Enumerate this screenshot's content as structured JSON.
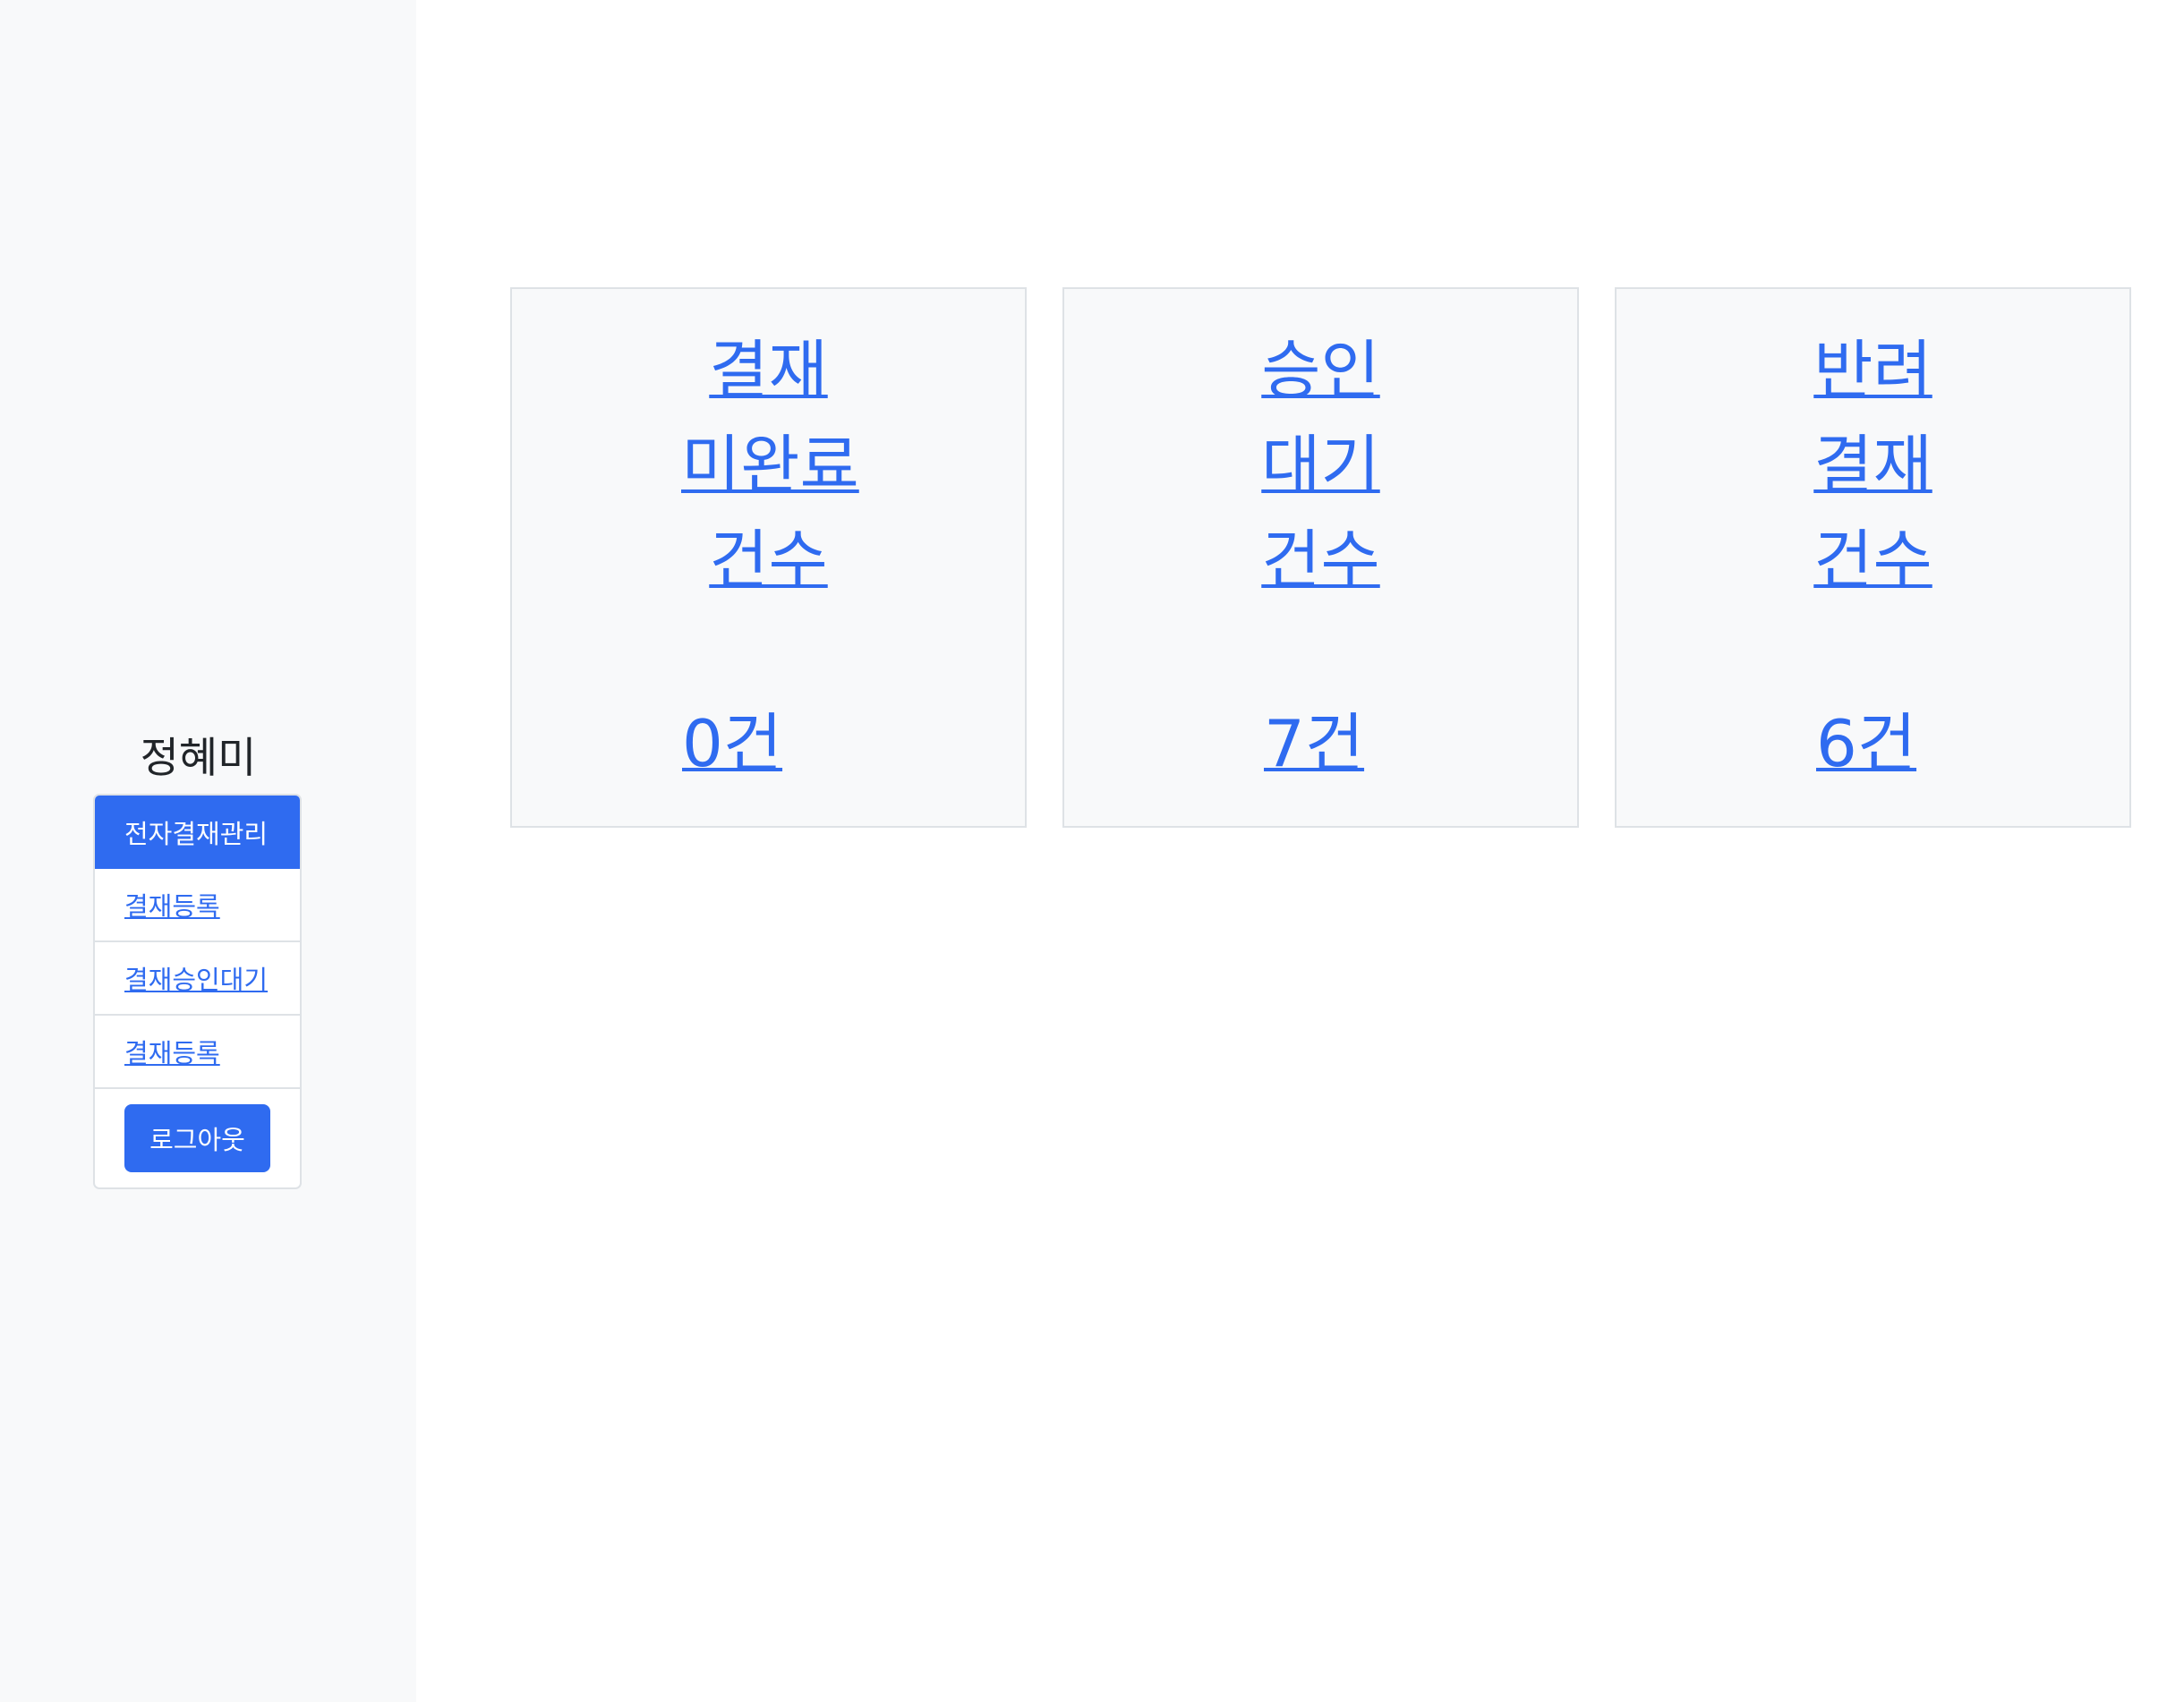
{
  "sidebar": {
    "user_name": "정혜미",
    "menu": {
      "header": "전자결재관리",
      "items": [
        {
          "label": "결재등록"
        },
        {
          "label": "결재승인대기"
        },
        {
          "label": "결재등록"
        }
      ],
      "logout_label": "로그아웃"
    }
  },
  "cards": [
    {
      "title": "결재 미완료 건수",
      "count": "0건"
    },
    {
      "title": "승인 대기 건수",
      "count": "7건"
    },
    {
      "title": "반려 결재 건수",
      "count": "6건"
    }
  ],
  "colors": {
    "accent": "#2f6bf0",
    "sidebar_bg": "#f8f9fa",
    "card_bg": "#f8f9fa",
    "border": "#dee2e6"
  }
}
